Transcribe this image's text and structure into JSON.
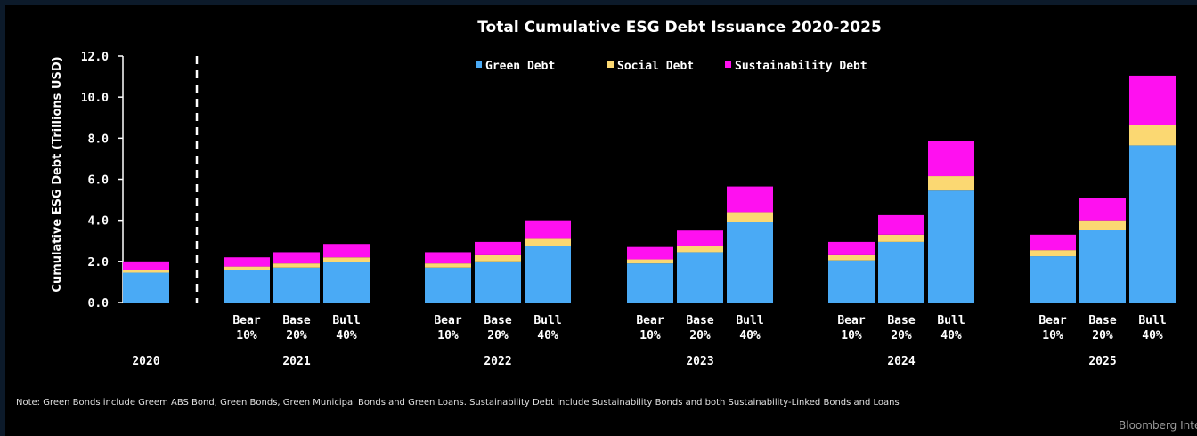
{
  "chart_data": {
    "type": "bar",
    "stacked": true,
    "title": "Total Cumulative ESG Debt Issuance 2020-2025",
    "ylabel": "Cumulative ESG Debt (Trillions USD)",
    "ylim": [
      0,
      12
    ],
    "yticks": [
      "0.0",
      "2.0",
      "4.0",
      "6.0",
      "8.0",
      "10.0",
      "12.0"
    ],
    "grid": false,
    "legend_position": "top",
    "series": [
      {
        "name": "Green Debt",
        "color": "#4aaaf5"
      },
      {
        "name": "Social Debt",
        "color": "#fbd872"
      },
      {
        "name": "Sustainability Debt",
        "color": "#ff10f0"
      }
    ],
    "groups": [
      {
        "year": "2020",
        "bars": [
          {
            "label": "",
            "green": 1.45,
            "social": 0.15,
            "sustainability": 0.4
          }
        ]
      },
      {
        "year": "2021",
        "bars": [
          {
            "label": "Bear 10%",
            "green": 1.6,
            "social": 0.15,
            "sustainability": 0.45
          },
          {
            "label": "Base 20%",
            "green": 1.7,
            "social": 0.2,
            "sustainability": 0.55
          },
          {
            "label": "Bull 40%",
            "green": 1.95,
            "social": 0.25,
            "sustainability": 0.65
          }
        ]
      },
      {
        "year": "2022",
        "bars": [
          {
            "label": "Bear 10%",
            "green": 1.7,
            "social": 0.2,
            "sustainability": 0.55
          },
          {
            "label": "Base 20%",
            "green": 2.0,
            "social": 0.3,
            "sustainability": 0.65
          },
          {
            "label": "Bull 40%",
            "green": 2.75,
            "social": 0.35,
            "sustainability": 0.9
          }
        ]
      },
      {
        "year": "2023",
        "bars": [
          {
            "label": "Bear 10%",
            "green": 1.9,
            "social": 0.2,
            "sustainability": 0.6
          },
          {
            "label": "Base 20%",
            "green": 2.45,
            "social": 0.3,
            "sustainability": 0.75
          },
          {
            "label": "Bull 40%",
            "green": 3.9,
            "social": 0.5,
            "sustainability": 1.25
          }
        ]
      },
      {
        "year": "2024",
        "bars": [
          {
            "label": "Bear 10%",
            "green": 2.05,
            "social": 0.25,
            "sustainability": 0.65
          },
          {
            "label": "Base 20%",
            "green": 2.95,
            "social": 0.35,
            "sustainability": 0.95
          },
          {
            "label": "Bull 40%",
            "green": 5.45,
            "social": 0.7,
            "sustainability": 1.7
          }
        ]
      },
      {
        "year": "2025",
        "bars": [
          {
            "label": "Bear 10%",
            "green": 2.25,
            "social": 0.3,
            "sustainability": 0.75
          },
          {
            "label": "Base 20%",
            "green": 3.55,
            "social": 0.45,
            "sustainability": 1.1
          },
          {
            "label": "Bull 40%",
            "green": 7.65,
            "social": 1.0,
            "sustainability": 2.4
          }
        ]
      }
    ]
  },
  "note": "Note: Green Bonds include Greem ABS Bond, Green Bonds, Green Municipal Bonds and Green Loans. Sustainability Debt include Sustainability Bonds and both Sustainability-Linked Bonds and Loans",
  "source": "Bloomberg Intelligence"
}
